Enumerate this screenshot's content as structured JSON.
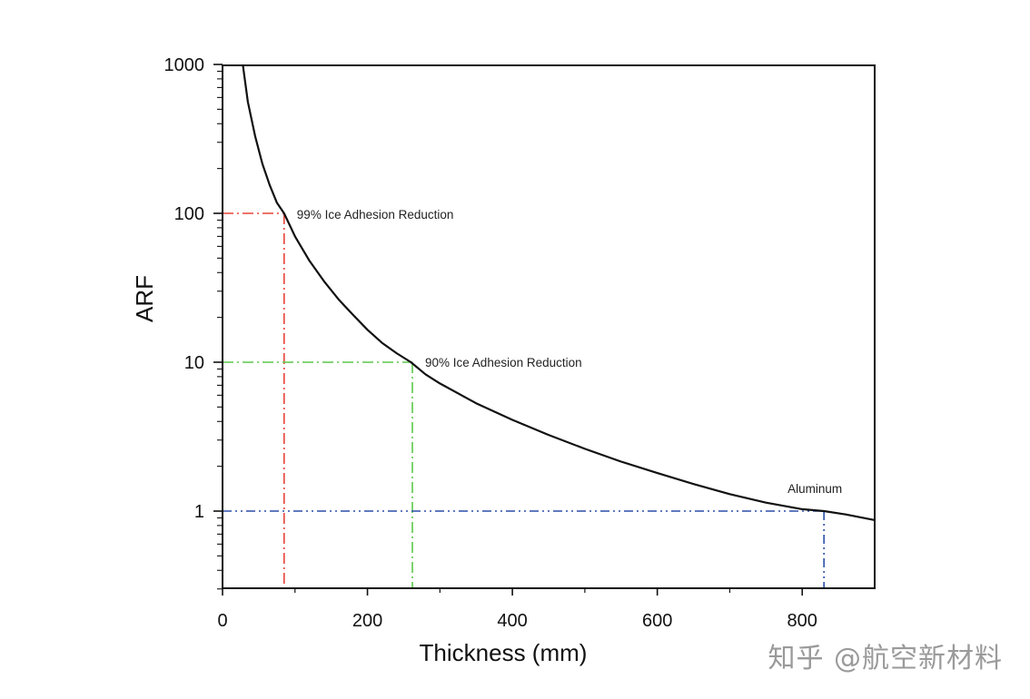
{
  "chart_data": {
    "type": "line",
    "xlabel": "Thickness (mm)",
    "ylabel": "ARF",
    "xlim": [
      0,
      900
    ],
    "ylim": [
      0.3,
      1000
    ],
    "yscale": "log",
    "x_ticks": [
      0,
      200,
      400,
      600,
      800
    ],
    "x_tick_labels": [
      "0",
      "200",
      "400",
      "600",
      "800"
    ],
    "y_ticks": [
      1,
      10,
      100,
      1000
    ],
    "y_tick_labels": [
      "1",
      "10",
      "100",
      "1000"
    ],
    "grid": false,
    "series": [
      {
        "name": "ARF curve",
        "color": "#111111",
        "x": [
          28,
          35,
          45,
          55,
          65,
          75,
          85,
          100,
          120,
          140,
          160,
          180,
          200,
          220,
          240,
          260,
          280,
          300,
          350,
          400,
          450,
          500,
          550,
          600,
          650,
          700,
          750,
          800,
          830,
          860,
          900
        ],
        "y": [
          1000,
          560,
          330,
          215,
          155,
          118,
          100,
          70,
          48,
          35,
          26.5,
          20.8,
          16.5,
          13.5,
          11.5,
          10,
          8.3,
          7.2,
          5.3,
          4.1,
          3.25,
          2.62,
          2.15,
          1.8,
          1.52,
          1.3,
          1.14,
          1.03,
          1.0,
          0.95,
          0.87
        ]
      }
    ],
    "reference_lines": [
      {
        "label": "99% Ice Adhesion Reduction",
        "x": 85,
        "y": 100,
        "color": "#e8433a"
      },
      {
        "label": "90% Ice Adhesion Reduction",
        "x": 262,
        "y": 10,
        "color": "#5cc94a"
      },
      {
        "label": "Aluminum",
        "x": 830,
        "y": 1,
        "color": "#2b4fa8"
      }
    ]
  },
  "watermark": "知乎 @航空新材料"
}
